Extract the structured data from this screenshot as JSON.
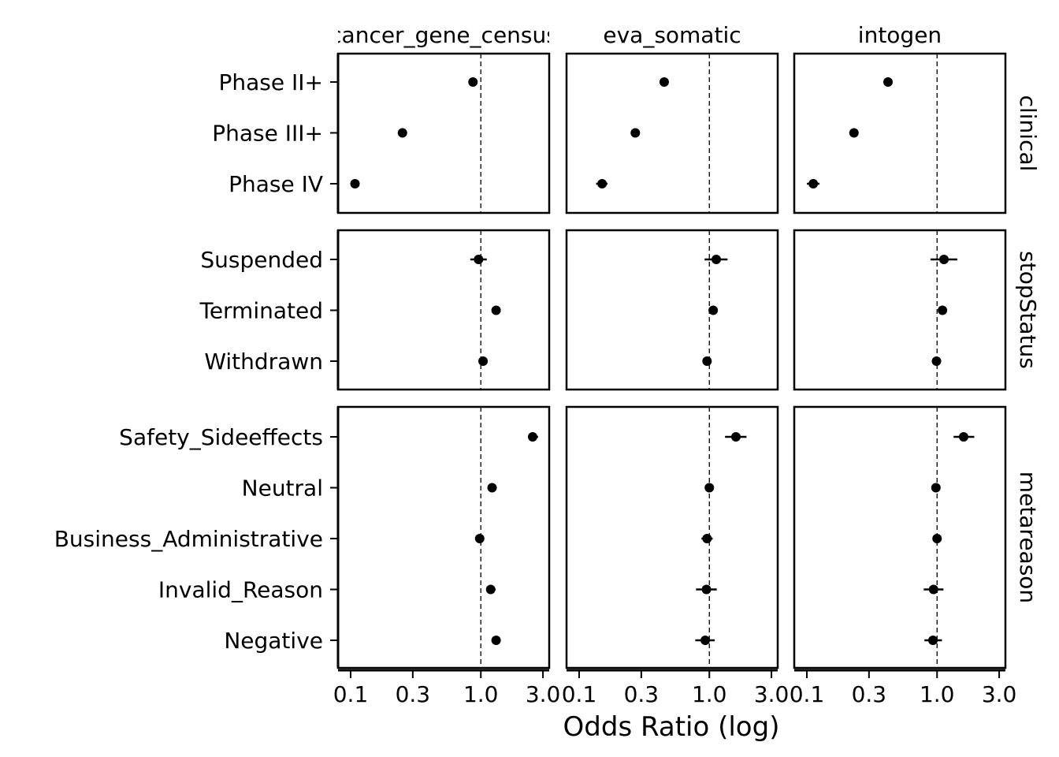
{
  "chart_data": {
    "type": "scatter",
    "subtype": "forest-plot-faceted",
    "xlabel": "Odds Ratio (log)",
    "x_scale": "log",
    "x_ticks": [
      "0.1",
      "0.3",
      "1.0",
      "3.0"
    ],
    "x_tick_values": [
      0.1,
      0.3,
      1.0,
      3.0
    ],
    "reference_line": 1.0,
    "grid": false,
    "columns": [
      "cancer_gene_census",
      "eva_somatic",
      "intogen"
    ],
    "rows": [
      {
        "name": "clinical",
        "categories": [
          "Phase II+",
          "Phase III+",
          "Phase IV"
        ]
      },
      {
        "name": "stopStatus",
        "categories": [
          "Suspended",
          "Terminated",
          "Withdrawn"
        ]
      },
      {
        "name": "metareason",
        "categories": [
          "Safety_Sideeffects",
          "Neutral",
          "Business_Administrative",
          "Invalid_Reason",
          "Negative"
        ]
      }
    ],
    "values": {
      "cancer_gene_census": {
        "clinical": [
          {
            "or": 0.87,
            "lo": 0.86,
            "hi": 0.88
          },
          {
            "or": 0.25,
            "lo": 0.245,
            "hi": 0.255
          },
          {
            "or": 0.108,
            "lo": 0.104,
            "hi": 0.112
          }
        ],
        "stopStatus": [
          {
            "or": 0.96,
            "lo": 0.83,
            "hi": 1.11
          },
          {
            "or": 1.31,
            "lo": 1.28,
            "hi": 1.34
          },
          {
            "or": 1.04,
            "lo": 1.01,
            "hi": 1.07
          }
        ],
        "metareason": [
          {
            "or": 2.5,
            "lo": 2.3,
            "hi": 2.75
          },
          {
            "or": 1.22,
            "lo": 1.19,
            "hi": 1.25
          },
          {
            "or": 0.98,
            "lo": 0.96,
            "hi": 1.0
          },
          {
            "or": 1.19,
            "lo": 1.1,
            "hi": 1.3
          },
          {
            "or": 1.31,
            "lo": 1.22,
            "hi": 1.4
          }
        ]
      },
      "eva_somatic": {
        "clinical": [
          {
            "or": 0.45,
            "lo": 0.44,
            "hi": 0.46
          },
          {
            "or": 0.27,
            "lo": 0.265,
            "hi": 0.275
          },
          {
            "or": 0.15,
            "lo": 0.135,
            "hi": 0.165
          }
        ],
        "stopStatus": [
          {
            "or": 1.13,
            "lo": 0.92,
            "hi": 1.38
          },
          {
            "or": 1.07,
            "lo": 1.04,
            "hi": 1.1
          },
          {
            "or": 0.96,
            "lo": 0.92,
            "hi": 1.01
          }
        ],
        "metareason": [
          {
            "or": 1.6,
            "lo": 1.32,
            "hi": 1.93
          },
          {
            "or": 1.0,
            "lo": 0.97,
            "hi": 1.03
          },
          {
            "or": 0.96,
            "lo": 0.87,
            "hi": 1.06
          },
          {
            "or": 0.95,
            "lo": 0.79,
            "hi": 1.14
          },
          {
            "or": 0.93,
            "lo": 0.78,
            "hi": 1.1
          }
        ]
      },
      "intogen": {
        "clinical": [
          {
            "or": 0.42,
            "lo": 0.41,
            "hi": 0.43
          },
          {
            "or": 0.23,
            "lo": 0.225,
            "hi": 0.235
          },
          {
            "or": 0.112,
            "lo": 0.1,
            "hi": 0.125
          }
        ],
        "stopStatus": [
          {
            "or": 1.13,
            "lo": 0.89,
            "hi": 1.43
          },
          {
            "or": 1.1,
            "lo": 1.07,
            "hi": 1.13
          },
          {
            "or": 0.99,
            "lo": 0.94,
            "hi": 1.04
          }
        ],
        "metareason": [
          {
            "or": 1.6,
            "lo": 1.34,
            "hi": 1.93
          },
          {
            "or": 0.98,
            "lo": 0.95,
            "hi": 1.01
          },
          {
            "or": 1.0,
            "lo": 0.93,
            "hi": 1.08
          },
          {
            "or": 0.94,
            "lo": 0.79,
            "hi": 1.12
          },
          {
            "or": 0.93,
            "lo": 0.8,
            "hi": 1.09
          }
        ]
      }
    }
  }
}
